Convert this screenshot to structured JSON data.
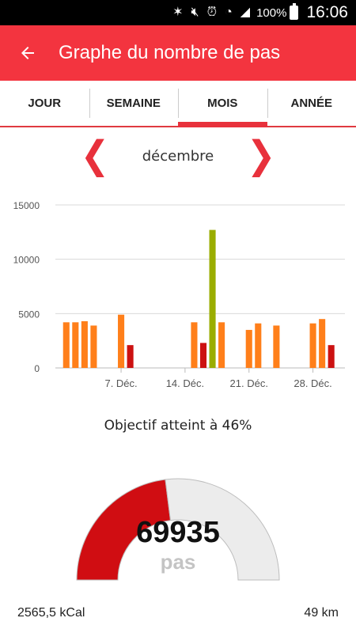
{
  "status_bar": {
    "battery_pct": "100%",
    "time": "16:06"
  },
  "app_bar": {
    "title": "Graphe du nombre de pas"
  },
  "tabs": [
    {
      "label": "JOUR",
      "active": false
    },
    {
      "label": "SEMAINE",
      "active": false
    },
    {
      "label": "MOIS",
      "active": true
    },
    {
      "label": "ANNÉE",
      "active": false
    }
  ],
  "month_nav": {
    "label": "décembre"
  },
  "chart_data": {
    "type": "bar",
    "x": [
      1,
      2,
      3,
      4,
      5,
      6,
      7,
      8,
      9,
      10,
      11,
      12,
      13,
      14,
      15,
      16,
      17,
      18,
      19,
      20,
      21,
      22,
      23,
      24,
      25,
      26,
      27,
      28,
      29,
      30,
      31
    ],
    "values": [
      4200,
      4200,
      4300,
      3900,
      0,
      0,
      4900,
      2100,
      0,
      0,
      0,
      0,
      0,
      0,
      4200,
      2300,
      12700,
      4200,
      0,
      0,
      3500,
      4100,
      0,
      3900,
      0,
      0,
      0,
      4100,
      4500,
      2100,
      0
    ],
    "colors": [
      "orange",
      "orange",
      "orange",
      "orange",
      "orange",
      "orange",
      "orange",
      "red",
      "orange",
      "orange",
      "orange",
      "orange",
      "orange",
      "orange",
      "orange",
      "red",
      "olive",
      "orange",
      "orange",
      "orange",
      "orange",
      "orange",
      "orange",
      "orange",
      "orange",
      "orange",
      "orange",
      "orange",
      "orange",
      "red",
      "orange"
    ],
    "palette": {
      "orange": "#ff7f1a",
      "red": "#cc1111",
      "olive": "#9aad00",
      "grid": "#d9d9d9",
      "axis": "#bbbbbb"
    },
    "ylim": [
      0,
      15000
    ],
    "yticks": [
      0,
      5000,
      10000,
      15000
    ],
    "xtick_positions": [
      7,
      14,
      21,
      28
    ],
    "xtick_labels": [
      "7. Déc.",
      "14. Déc.",
      "21. Déc.",
      "28. Déc."
    ],
    "grid": true
  },
  "goal": {
    "text": "Objectif atteint à 46%",
    "fraction": 0.46
  },
  "gauge": {
    "value": "69935",
    "unit": "pas",
    "fill_color": "#d00d12",
    "track_color": "#ececec"
  },
  "footer": {
    "calories": "2565,5 kCal",
    "distance": "49 km"
  }
}
